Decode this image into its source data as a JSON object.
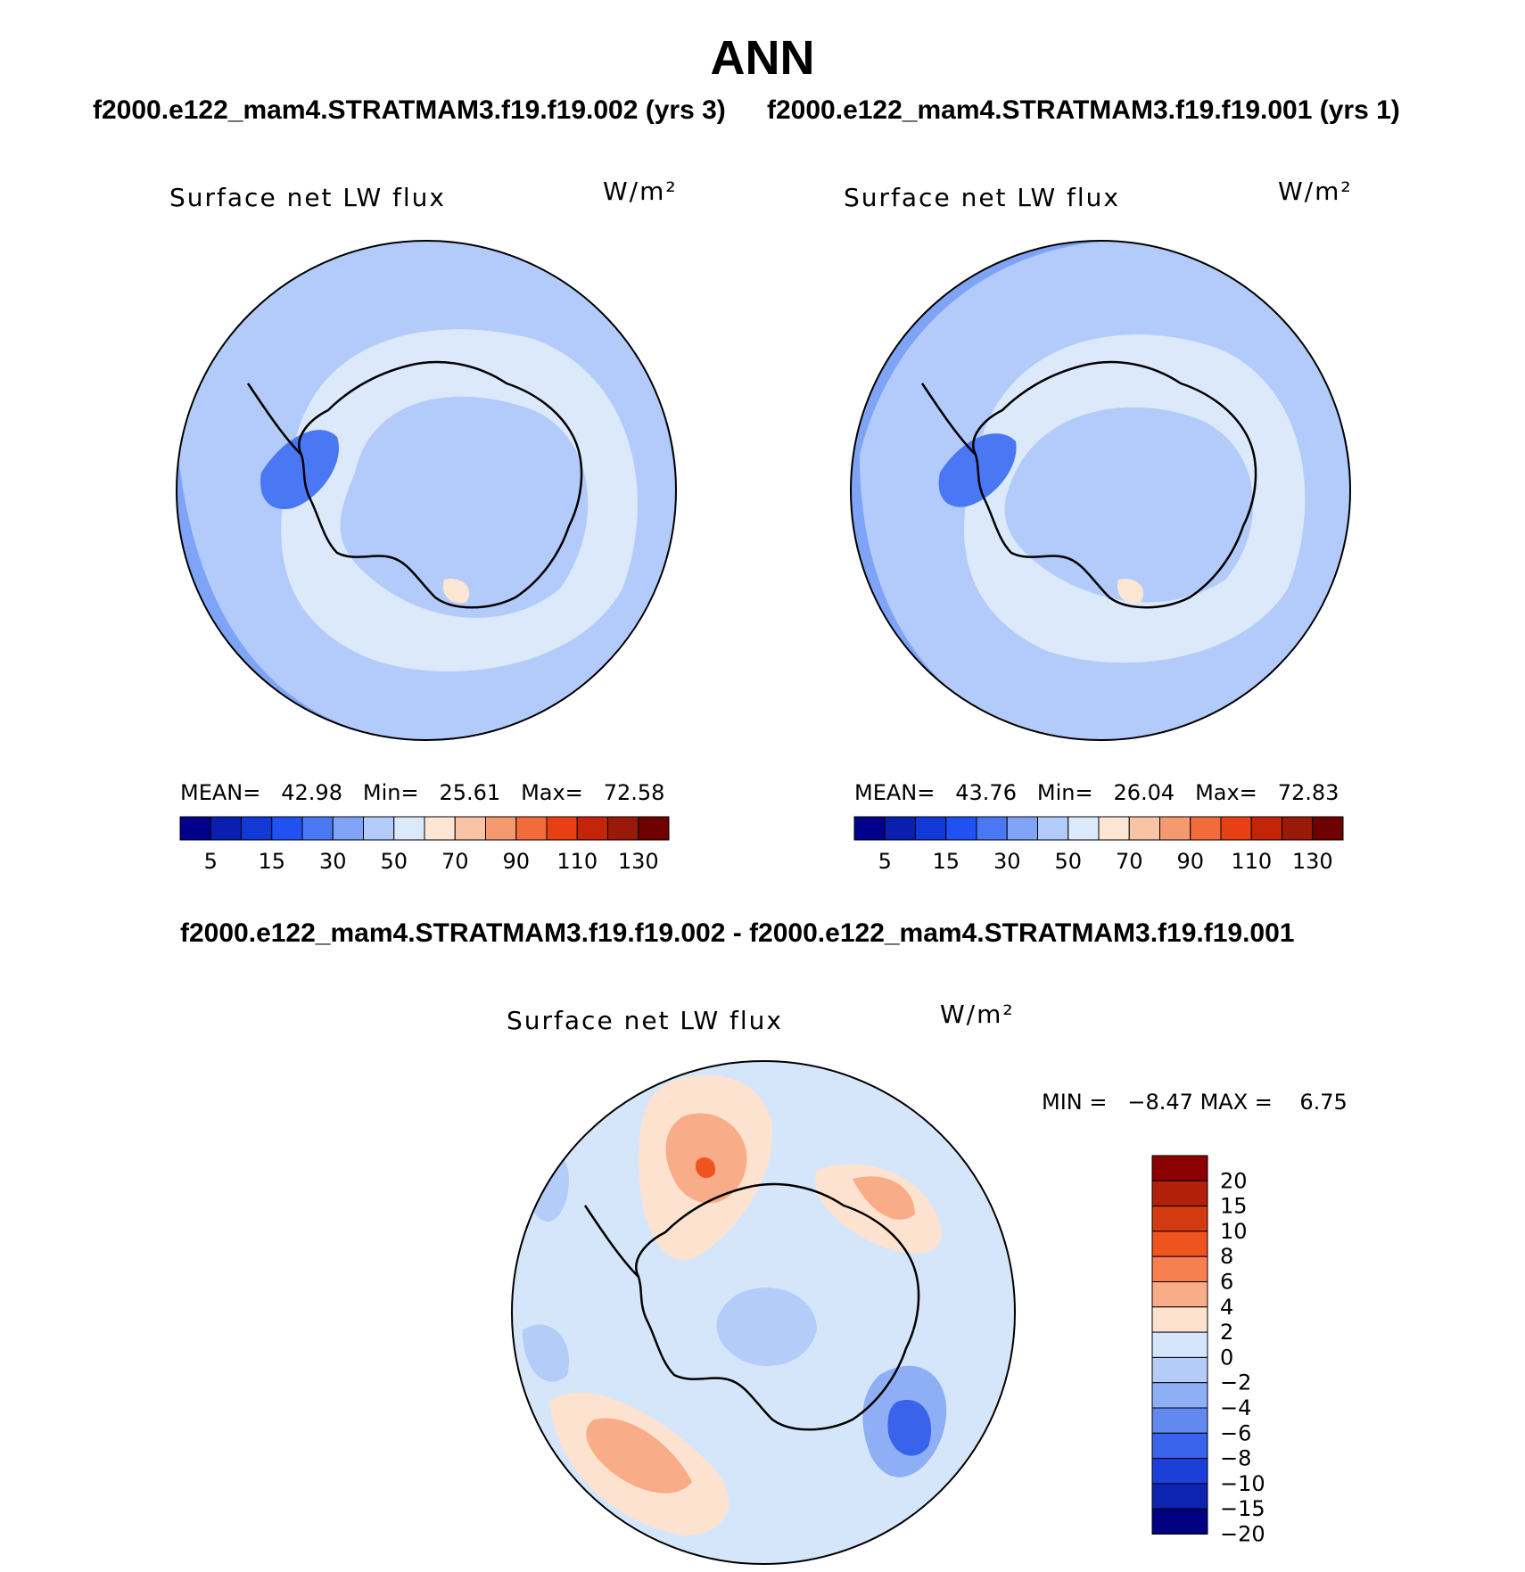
{
  "title": "ANN",
  "top_subtitle_left": "f2000.e122_mam4.STRATMAM3.f19.f19.002 (yrs 3)",
  "top_subtitle_right": "f2000.e122_mam4.STRATMAM3.f19.f19.001 (yrs 1)",
  "diff_subtitle": "f2000.e122_mam4.STRATMAM3.f19.f19.002 - f2000.e122_mam4.STRATMAM3.f19.f19.001",
  "panels": [
    {
      "variable": "Surface net LW flux",
      "units": "W/m²",
      "mean_label": "MEAN=",
      "mean": "42.98",
      "min_label": "Min=",
      "min": "25.61",
      "max_label": "Max=",
      "max": "72.58"
    },
    {
      "variable": "Surface net LW flux",
      "units": "W/m²",
      "mean_label": "MEAN=",
      "mean": "43.76",
      "min_label": "Min=",
      "min": "26.04",
      "max_label": "Max=",
      "max": "72.83"
    }
  ],
  "diff_panel": {
    "variable": "Surface net LW flux",
    "units": "W/m²",
    "min_label": "MIN =",
    "min": "−8.47",
    "max_label": "MAX =",
    "max": "6.75"
  },
  "colorbar_abs": {
    "colors": [
      "#00008b",
      "#0a1fb0",
      "#1239d6",
      "#1f52f0",
      "#4a78f5",
      "#7fa4f7",
      "#b3cbfa",
      "#dce9fb",
      "#fde6d4",
      "#f8c4a4",
      "#f59a70",
      "#f26b3a",
      "#e84015",
      "#c4240a",
      "#9a1a0a",
      "#6e0000"
    ],
    "tick_labels": [
      "5",
      "15",
      "30",
      "50",
      "70",
      "90",
      "110",
      "130"
    ]
  },
  "colorbar_diff": {
    "colors": [
      "#8b0000",
      "#b0200a",
      "#d43a10",
      "#f0541e",
      "#f88050",
      "#f8ac88",
      "#fde3cf",
      "#d6e6fa",
      "#b3ccf8",
      "#8eaff5",
      "#6289f0",
      "#3863ea",
      "#1b3fd8",
      "#0c24b0",
      "#000080"
    ],
    "tick_labels": [
      "20",
      "15",
      "10",
      "8",
      "6",
      "4",
      "2",
      "0",
      "−2",
      "−4",
      "−6",
      "−8",
      "−10",
      "−15",
      "−20"
    ]
  }
}
